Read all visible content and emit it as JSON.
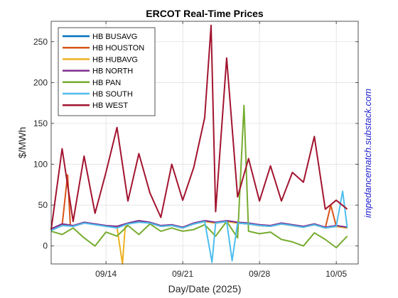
{
  "colors": {
    "background": "#ffffff",
    "grid": "#dcdcdc",
    "axis": "#262626",
    "watermark": "#1f1fd1"
  },
  "watermark": "impedancematch.substack.com",
  "chart_data": {
    "type": "line",
    "title": "ERCOT Real-Time Prices",
    "xlabel": "Day/Date (2025)",
    "ylabel": "$/MWh",
    "xlim": [
      "2025-09-09",
      "2025-10-07"
    ],
    "ylim": [
      -22,
      275
    ],
    "xticks": [
      "2025-09-14",
      "2025-09-21",
      "2025-09-28",
      "2025-10-05"
    ],
    "xtick_labels": [
      "09/14",
      "09/21",
      "09/28",
      "10/05"
    ],
    "yticks": [
      0,
      50,
      100,
      150,
      200,
      250
    ],
    "ytick_labels": [
      "0",
      "50",
      "100",
      "150",
      "200",
      "250"
    ],
    "grid": true,
    "legend_position": "top-left",
    "series": [
      {
        "name": "HB BUSAVG",
        "color": "#0072bd",
        "points": [
          [
            "09-09",
            20
          ],
          [
            "09-10",
            26
          ],
          [
            "09-11",
            24
          ],
          [
            "09-12",
            28
          ],
          [
            "09-13",
            27
          ],
          [
            "09-14",
            24
          ],
          [
            "09-15",
            23
          ],
          [
            "09-16",
            27
          ],
          [
            "09-17",
            30
          ],
          [
            "09-18",
            28
          ],
          [
            "09-19",
            24
          ],
          [
            "09-20",
            25
          ],
          [
            "09-21",
            22
          ],
          [
            "09-22",
            27
          ],
          [
            "09-23",
            30
          ],
          [
            "09-24",
            28
          ],
          [
            "09-25",
            30
          ],
          [
            "09-26",
            28
          ],
          [
            "09-27",
            27
          ],
          [
            "09-28",
            25
          ],
          [
            "09-29",
            24
          ],
          [
            "09-30",
            27
          ],
          [
            "10-01",
            25
          ],
          [
            "10-02",
            23
          ],
          [
            "10-03",
            26
          ],
          [
            "10-04",
            22
          ],
          [
            "10-05",
            24
          ],
          [
            "10-06",
            22
          ]
        ]
      },
      {
        "name": "HB HOUSTON",
        "color": "#d95319",
        "points": [
          [
            "09-09",
            20
          ],
          [
            "09-10",
            25
          ],
          [
            "09-10 12:00",
            87
          ],
          [
            "09-10 18:00",
            25
          ],
          [
            "09-11",
            24
          ],
          [
            "09-12",
            28
          ],
          [
            "09-13",
            27
          ],
          [
            "09-14",
            24
          ],
          [
            "09-15",
            23
          ],
          [
            "09-16",
            27
          ],
          [
            "09-17",
            30
          ],
          [
            "09-18",
            28
          ],
          [
            "09-19",
            24
          ],
          [
            "09-20",
            25
          ],
          [
            "09-21",
            22
          ],
          [
            "09-22",
            27
          ],
          [
            "09-23",
            30
          ],
          [
            "09-24",
            28
          ],
          [
            "09-25",
            30
          ],
          [
            "09-26",
            28
          ],
          [
            "09-27",
            27
          ],
          [
            "09-28",
            25
          ],
          [
            "09-29",
            24
          ],
          [
            "09-30",
            27
          ],
          [
            "10-01",
            25
          ],
          [
            "10-02",
            23
          ],
          [
            "10-03",
            26
          ],
          [
            "10-04",
            22
          ],
          [
            "10-04 12:00",
            50
          ],
          [
            "10-05",
            24
          ],
          [
            "10-06",
            22
          ]
        ]
      },
      {
        "name": "HB HUBAVG",
        "color": "#edb120",
        "points": [
          [
            "09-09",
            20
          ],
          [
            "09-10",
            26
          ],
          [
            "09-11",
            24
          ],
          [
            "09-12",
            28
          ],
          [
            "09-13",
            27
          ],
          [
            "09-14",
            24
          ],
          [
            "09-15",
            23
          ],
          [
            "09-15 12:00",
            -22
          ],
          [
            "09-15 18:00",
            23
          ],
          [
            "09-16",
            27
          ],
          [
            "09-17",
            30
          ],
          [
            "09-18",
            28
          ],
          [
            "09-19",
            24
          ],
          [
            "09-20",
            25
          ],
          [
            "09-21",
            22
          ],
          [
            "09-22",
            27
          ],
          [
            "09-23",
            30
          ],
          [
            "09-24",
            28
          ],
          [
            "09-25",
            30
          ],
          [
            "09-26",
            28
          ],
          [
            "09-27",
            27
          ],
          [
            "09-28",
            25
          ],
          [
            "09-29",
            24
          ],
          [
            "09-30",
            27
          ],
          [
            "10-01",
            25
          ],
          [
            "10-02",
            23
          ],
          [
            "10-03",
            26
          ],
          [
            "10-04",
            22
          ],
          [
            "10-05",
            24
          ],
          [
            "10-06",
            22
          ]
        ]
      },
      {
        "name": "HB NORTH",
        "color": "#7e2f8e",
        "points": [
          [
            "09-09",
            21
          ],
          [
            "09-10",
            27
          ],
          [
            "09-11",
            25
          ],
          [
            "09-12",
            29
          ],
          [
            "09-13",
            27
          ],
          [
            "09-14",
            25
          ],
          [
            "09-15",
            24
          ],
          [
            "09-16",
            28
          ],
          [
            "09-17",
            31
          ],
          [
            "09-18",
            29
          ],
          [
            "09-19",
            25
          ],
          [
            "09-20",
            26
          ],
          [
            "09-21",
            23
          ],
          [
            "09-22",
            28
          ],
          [
            "09-23",
            31
          ],
          [
            "09-24",
            29
          ],
          [
            "09-25",
            31
          ],
          [
            "09-26",
            29
          ],
          [
            "09-27",
            28
          ],
          [
            "09-28",
            26
          ],
          [
            "09-29",
            25
          ],
          [
            "09-30",
            28
          ],
          [
            "10-01",
            26
          ],
          [
            "10-02",
            24
          ],
          [
            "10-03",
            27
          ],
          [
            "10-04",
            23
          ],
          [
            "10-05",
            25
          ],
          [
            "10-06",
            23
          ]
        ]
      },
      {
        "name": "HB PAN",
        "color": "#77ac30",
        "points": [
          [
            "09-09",
            18
          ],
          [
            "09-10",
            14
          ],
          [
            "09-11",
            22
          ],
          [
            "09-12",
            10
          ],
          [
            "09-13",
            0
          ],
          [
            "09-14",
            17
          ],
          [
            "09-15",
            12
          ],
          [
            "09-16",
            25
          ],
          [
            "09-17",
            14
          ],
          [
            "09-18",
            27
          ],
          [
            "09-19",
            18
          ],
          [
            "09-20",
            22
          ],
          [
            "09-21",
            18
          ],
          [
            "09-22",
            20
          ],
          [
            "09-23",
            26
          ],
          [
            "09-24",
            12
          ],
          [
            "09-25",
            30
          ],
          [
            "09-26",
            10
          ],
          [
            "09-26 14:00",
            172
          ],
          [
            "09-27",
            18
          ],
          [
            "09-28",
            15
          ],
          [
            "09-29",
            17
          ],
          [
            "09-30",
            8
          ],
          [
            "10-01",
            5
          ],
          [
            "10-02",
            0
          ],
          [
            "10-03",
            16
          ],
          [
            "10-04",
            8
          ],
          [
            "10-05",
            -2
          ],
          [
            "10-06",
            12
          ]
        ]
      },
      {
        "name": "HB SOUTH",
        "color": "#4dbeee",
        "points": [
          [
            "09-09",
            19
          ],
          [
            "09-10",
            25
          ],
          [
            "09-11",
            24
          ],
          [
            "09-12",
            28
          ],
          [
            "09-13",
            26
          ],
          [
            "09-14",
            24
          ],
          [
            "09-15",
            22
          ],
          [
            "09-16",
            27
          ],
          [
            "09-17",
            29
          ],
          [
            "09-18",
            28
          ],
          [
            "09-19",
            24
          ],
          [
            "09-20",
            25
          ],
          [
            "09-21",
            22
          ],
          [
            "09-22",
            27
          ],
          [
            "09-23",
            30
          ],
          [
            "09-23 16:00",
            -20
          ],
          [
            "09-24",
            28
          ],
          [
            "09-25",
            30
          ],
          [
            "09-25 12:00",
            -18
          ],
          [
            "09-26",
            28
          ],
          [
            "09-27",
            27
          ],
          [
            "09-28",
            25
          ],
          [
            "09-29",
            24
          ],
          [
            "09-30",
            27
          ],
          [
            "10-01",
            25
          ],
          [
            "10-02",
            23
          ],
          [
            "10-03",
            26
          ],
          [
            "10-04",
            22
          ],
          [
            "10-05",
            24
          ],
          [
            "10-05 14:00",
            67
          ],
          [
            "10-06",
            22
          ]
        ]
      },
      {
        "name": "HB WEST",
        "color": "#a2142f",
        "points": [
          [
            "09-09",
            20
          ],
          [
            "09-10",
            119
          ],
          [
            "09-11",
            30
          ],
          [
            "09-12",
            110
          ],
          [
            "09-13",
            40
          ],
          [
            "09-14",
            90
          ],
          [
            "09-15",
            145
          ],
          [
            "09-16",
            55
          ],
          [
            "09-17",
            113
          ],
          [
            "09-18",
            65
          ],
          [
            "09-19",
            35
          ],
          [
            "09-20",
            100
          ],
          [
            "09-21",
            56
          ],
          [
            "09-22",
            96
          ],
          [
            "09-23",
            157
          ],
          [
            "09-23 14:00",
            270
          ],
          [
            "09-24",
            42
          ],
          [
            "09-25",
            230
          ],
          [
            "09-26",
            60
          ],
          [
            "09-27",
            107
          ],
          [
            "09-28",
            55
          ],
          [
            "09-29",
            98
          ],
          [
            "09-30",
            55
          ],
          [
            "10-01",
            90
          ],
          [
            "10-02",
            78
          ],
          [
            "10-03",
            134
          ],
          [
            "10-04",
            45
          ],
          [
            "10-05",
            56
          ],
          [
            "10-06",
            45
          ]
        ]
      }
    ]
  }
}
